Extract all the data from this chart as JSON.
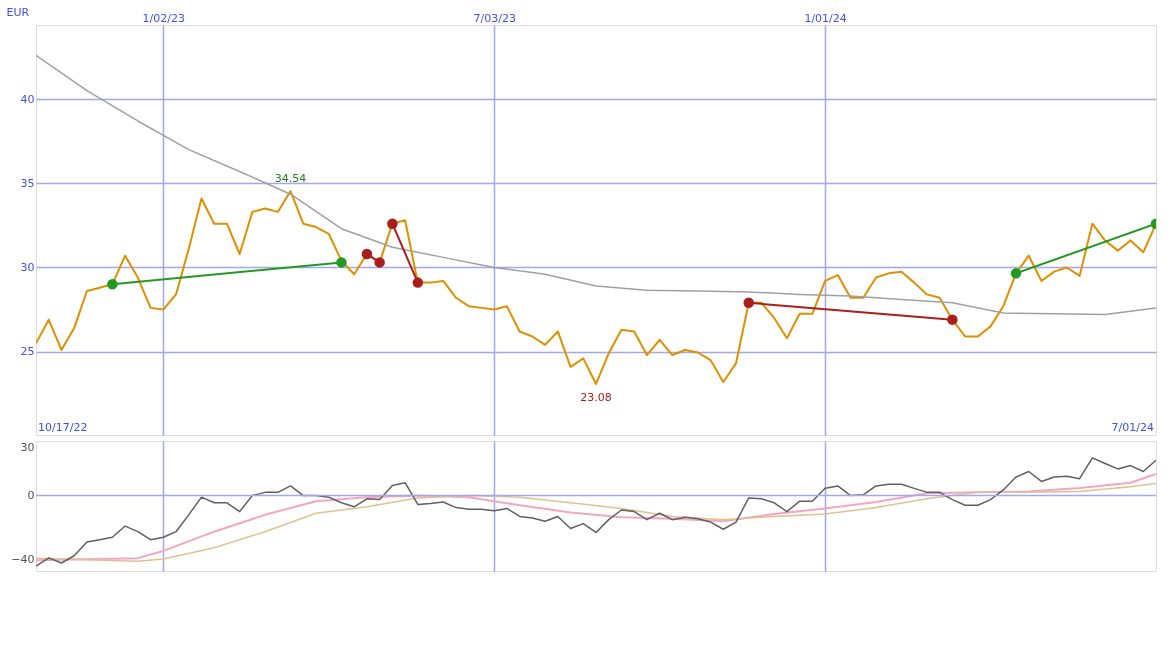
{
  "chart_data": [
    {
      "type": "line",
      "ylabel": "EUR",
      "x": [
        "2022-10-24",
        "2022-10-31",
        "2022-11-07",
        "2022-11-14",
        "2022-11-21",
        "2022-11-28",
        "2022-12-05",
        "2022-12-12",
        "2022-12-19",
        "2022-12-26",
        "2023-01-02",
        "2023-01-09",
        "2023-01-16",
        "2023-01-23",
        "2023-01-30",
        "2023-02-06",
        "2023-02-13",
        "2023-02-20",
        "2023-02-27",
        "2023-03-06",
        "2023-03-13",
        "2023-03-20",
        "2023-03-27",
        "2023-04-03",
        "2023-04-10",
        "2023-04-17",
        "2023-04-24",
        "2023-05-01",
        "2023-05-08",
        "2023-05-15",
        "2023-05-22",
        "2023-05-29",
        "2023-06-05",
        "2023-06-12",
        "2023-06-19",
        "2023-06-26",
        "2023-07-03",
        "2023-07-10",
        "2023-07-17",
        "2023-07-24",
        "2023-07-31",
        "2023-08-07",
        "2023-08-14",
        "2023-08-21",
        "2023-08-28",
        "2023-09-04",
        "2023-09-11",
        "2023-09-18",
        "2023-09-25",
        "2023-10-02",
        "2023-10-09",
        "2023-10-16",
        "2023-10-23",
        "2023-10-30",
        "2023-11-06",
        "2023-11-13",
        "2023-11-20",
        "2023-11-27",
        "2023-12-04",
        "2023-12-11",
        "2023-12-18",
        "2023-12-25",
        "2024-01-01",
        "2024-01-08",
        "2024-01-15",
        "2024-01-22",
        "2024-01-29",
        "2024-02-05",
        "2024-02-12",
        "2024-02-19",
        "2024-02-26",
        "2024-03-04",
        "2024-03-11",
        "2024-03-18",
        "2024-03-25",
        "2024-04-01",
        "2024-04-08",
        "2024-04-15",
        "2024-04-22",
        "2024-04-29",
        "2024-05-06",
        "2024-05-13",
        "2024-05-20",
        "2024-05-27",
        "2024-06-03",
        "2024-06-10",
        "2024-06-17",
        "2024-06-24",
        "2024-07-01"
      ],
      "series": [
        {
          "color": "#dd9000",
          "values": [
            25.5,
            26.9,
            25.1,
            26.4,
            28.6,
            28.8,
            29.0,
            30.7,
            29.4,
            27.6,
            27.5,
            28.4,
            31.1,
            34.1,
            32.6,
            32.6,
            30.8,
            33.3,
            33.5,
            33.3,
            34.54,
            32.6,
            32.4,
            32.0,
            30.4,
            29.6,
            30.8,
            30.3,
            32.6,
            32.8,
            29.1,
            29.1,
            29.2,
            28.2,
            27.7,
            27.6,
            27.5,
            27.7,
            26.2,
            25.9,
            25.4,
            26.2,
            24.1,
            24.6,
            23.08,
            24.9,
            26.3,
            26.2,
            24.8,
            25.7,
            24.8,
            25.1,
            24.95,
            24.5,
            23.2,
            24.3,
            27.9,
            27.9,
            27.0,
            25.8,
            27.25,
            27.25,
            29.2,
            29.55,
            28.2,
            28.2,
            29.4,
            29.65,
            29.75,
            29.1,
            28.4,
            28.2,
            26.9,
            25.9,
            25.9,
            26.5,
            27.7,
            29.65,
            30.7,
            29.2,
            29.75,
            30.0,
            29.5,
            32.6,
            31.6,
            31.0,
            31.6,
            30.9,
            32.6
          ]
        },
        {
          "color": "#a0a0a0",
          "x": [
            "2022-10-24",
            "2022-11-21",
            "2022-12-19",
            "2023-01-16",
            "2023-02-13",
            "2023-03-13",
            "2023-04-10",
            "2023-05-08",
            "2023-06-05",
            "2023-07-03",
            "2023-07-31",
            "2023-08-28",
            "2023-09-25",
            "2023-10-23",
            "2023-11-20",
            "2023-12-18",
            "2024-01-15",
            "2024-02-12",
            "2024-03-11",
            "2024-04-08",
            "2024-05-06",
            "2024-06-03",
            "2024-07-01"
          ],
          "values": [
            42.6,
            40.5,
            38.7,
            37.0,
            35.7,
            34.35,
            32.3,
            31.2,
            30.6,
            30.0,
            29.6,
            28.9,
            28.65,
            28.6,
            28.55,
            28.4,
            28.3,
            28.1,
            27.9,
            27.3,
            27.25,
            27.2,
            27.6
          ]
        },
        {
          "color": "#229922",
          "marker": "circle",
          "x": [
            "2022-12-05",
            "2023-04-10"
          ],
          "values": [
            29.0,
            30.3
          ]
        },
        {
          "color": "#aa1e1e",
          "marker": "circle",
          "x": [
            "2023-04-24",
            "2023-05-01"
          ],
          "values": [
            30.8,
            30.3
          ]
        },
        {
          "color": "#aa1e1e",
          "marker": "circle",
          "x": [
            "2023-05-08",
            "2023-05-22"
          ],
          "values": [
            32.6,
            29.1
          ]
        },
        {
          "color": "#aa1e1e",
          "marker": "circle",
          "x": [
            "2023-11-20",
            "2024-03-11"
          ],
          "values": [
            27.9,
            26.9
          ]
        },
        {
          "color": "#229922",
          "marker": "circle",
          "x": [
            "2024-04-15",
            "2024-07-01"
          ],
          "values": [
            29.65,
            32.6
          ]
        }
      ],
      "xlim": [
        "2022-10-24",
        "2024-07-01"
      ],
      "xticks": [
        {
          "value": "2023-01-02",
          "label": "1/02/23"
        },
        {
          "value": "2023-07-03",
          "label": "7/03/23"
        },
        {
          "value": "2024-01-01",
          "label": "1/01/24"
        }
      ],
      "ylim": [
        20.05,
        44.4
      ],
      "yticks": [
        25,
        30,
        35,
        40
      ],
      "grid": true,
      "annotations": [
        {
          "text": "34.54",
          "x": "2023-03-13",
          "y": 34.54
        },
        {
          "text": "23.08",
          "x": "2023-08-28",
          "y": 23.08
        },
        "10/17/22",
        "7/01/24"
      ]
    },
    {
      "type": "line",
      "x": [
        "2022-10-24",
        "2022-10-31",
        "2022-11-07",
        "2022-11-14",
        "2022-11-21",
        "2022-11-28",
        "2022-12-05",
        "2022-12-12",
        "2022-12-19",
        "2022-12-26",
        "2023-01-02",
        "2023-01-09",
        "2023-01-16",
        "2023-01-23",
        "2023-01-30",
        "2023-02-06",
        "2023-02-13",
        "2023-02-20",
        "2023-02-27",
        "2023-03-06",
        "2023-03-13",
        "2023-03-20",
        "2023-03-27",
        "2023-04-03",
        "2023-04-10",
        "2023-04-17",
        "2023-04-24",
        "2023-05-01",
        "2023-05-08",
        "2023-05-15",
        "2023-05-22",
        "2023-05-29",
        "2023-06-05",
        "2023-06-12",
        "2023-06-19",
        "2023-06-26",
        "2023-07-03",
        "2023-07-10",
        "2023-07-17",
        "2023-07-24",
        "2023-07-31",
        "2023-08-07",
        "2023-08-14",
        "2023-08-21",
        "2023-08-28",
        "2023-09-04",
        "2023-09-11",
        "2023-09-18",
        "2023-09-25",
        "2023-10-02",
        "2023-10-09",
        "2023-10-16",
        "2023-10-23",
        "2023-10-30",
        "2023-11-06",
        "2023-11-13",
        "2023-11-20",
        "2023-11-27",
        "2023-12-04",
        "2023-12-11",
        "2023-12-18",
        "2023-12-25",
        "2024-01-01",
        "2024-01-08",
        "2024-01-15",
        "2024-01-22",
        "2024-01-29",
        "2024-02-05",
        "2024-02-12",
        "2024-02-19",
        "2024-02-26",
        "2024-03-04",
        "2024-03-11",
        "2024-03-18",
        "2024-03-25",
        "2024-04-01",
        "2024-04-08",
        "2024-04-15",
        "2024-04-22",
        "2024-04-29",
        "2024-05-06",
        "2024-05-13",
        "2024-05-20",
        "2024-05-27",
        "2024-06-03",
        "2024-06-10",
        "2024-06-17",
        "2024-06-24",
        "2024-07-01"
      ],
      "series": [
        {
          "color": "#f4a6c0",
          "x": [
            "2022-10-24",
            "2022-12-19",
            "2023-01-02",
            "2023-01-30",
            "2023-02-27",
            "2023-03-27",
            "2023-04-24",
            "2023-05-22",
            "2023-06-19",
            "2023-07-17",
            "2023-08-14",
            "2023-09-11",
            "2023-10-09",
            "2023-11-06",
            "2023-12-04",
            "2024-01-01",
            "2024-01-29",
            "2024-02-26",
            "2024-03-25",
            "2024-04-22",
            "2024-05-20",
            "2024-06-17",
            "2024-07-01"
          ],
          "values": [
            -40.3,
            -39,
            -34.5,
            -22.5,
            -12,
            -3.5,
            -1,
            0,
            -1,
            -6,
            -10.5,
            -13.5,
            -14.5,
            -16,
            -11.5,
            -8,
            -4,
            1.5,
            2,
            2.5,
            4.7,
            8,
            13.5
          ]
        },
        {
          "color": "#e0c090",
          "x": [
            "2022-10-24",
            "2022-12-19",
            "2023-01-02",
            "2023-01-30",
            "2023-02-27",
            "2023-03-27",
            "2023-04-24",
            "2023-05-22",
            "2023-06-19",
            "2023-07-17",
            "2023-08-14",
            "2023-09-11",
            "2023-10-09",
            "2023-11-06",
            "2023-12-04",
            "2024-01-01",
            "2024-01-29",
            "2024-02-26",
            "2024-03-25",
            "2024-04-22",
            "2024-05-20",
            "2024-06-17",
            "2024-07-01"
          ],
          "values": [
            -39,
            -41,
            -39.5,
            -32.5,
            -22.5,
            -11,
            -7,
            -1.5,
            0,
            -1,
            -4.5,
            -8,
            -13,
            -15,
            -13,
            -11.5,
            -7.5,
            -2,
            2,
            2,
            2.5,
            5.5,
            7.5
          ]
        },
        {
          "color": "#606060",
          "values": [
            -44,
            -38.8,
            -42,
            -37.5,
            -29,
            -27.5,
            -26,
            -19,
            -22.5,
            -27.5,
            -26,
            -22.5,
            -12,
            -1,
            -4.5,
            -4.5,
            -10,
            0,
            2,
            2,
            6,
            0,
            0,
            -1,
            -4.5,
            -7,
            -2,
            -2.5,
            6.3,
            8,
            -5.5,
            -5,
            -4,
            -7.5,
            -8.5,
            -8.5,
            -9.5,
            -8,
            -13,
            -14,
            -16,
            -13,
            -20.5,
            -17.5,
            -23,
            -15,
            -9,
            -10,
            -15,
            -11,
            -15,
            -13.5,
            -14.5,
            -16.5,
            -21,
            -16.5,
            -1.5,
            -2,
            -4.5,
            -10,
            -3.5,
            -3.5,
            4.5,
            6,
            0,
            0.5,
            6,
            7,
            7,
            4.5,
            2,
            2,
            -2.5,
            -6,
            -6,
            -2.5,
            3.5,
            11.6,
            15,
            8.8,
            11.6,
            12,
            10.5,
            23.5,
            20,
            16.6,
            18.7,
            15,
            22
          ]
        }
      ],
      "xlim": [
        "2022-10-24",
        "2024-07-01"
      ],
      "xticks": [
        {
          "value": "2023-01-02",
          "label": null
        },
        {
          "value": "2023-07-03",
          "label": null
        },
        {
          "value": "2024-01-01",
          "label": null
        }
      ],
      "ylim": [
        -47,
        34
      ],
      "yticks": [
        30,
        0,
        -40
      ],
      "grid": "x",
      "tick_labels": "y",
      "ref_lines": [
        {
          "axis": "y",
          "value": 0,
          "color": "#a0a8f0"
        }
      ]
    }
  ]
}
